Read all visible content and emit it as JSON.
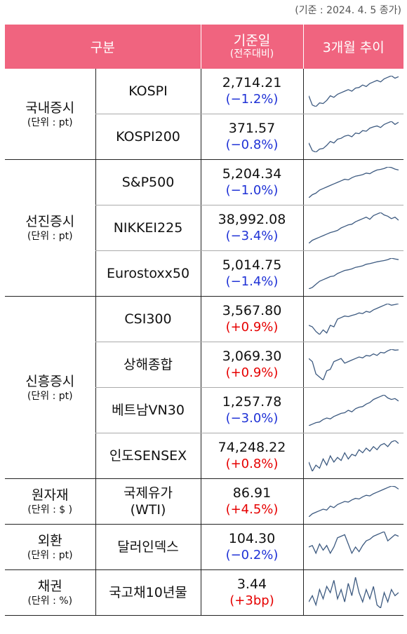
{
  "note": "(기준 : 2024. 4. 5 종가)",
  "header": {
    "col1": "구분",
    "col3_main": "기준일",
    "col3_sub": "(전주대비)",
    "col4": "3개월 추이"
  },
  "colors": {
    "header_bg": "#f0647f",
    "negative": "#1f32d6",
    "positive": "#e60000",
    "sparkline": "#3d5a80"
  },
  "groups": [
    {
      "name": "국내증시",
      "unit": "(단위 : pt)",
      "rows": [
        {
          "name": "KOSPI",
          "value": "2,714.21",
          "change": "(−1.2%)",
          "dir": "neg"
        },
        {
          "name": "KOSPI200",
          "value": "371.57",
          "change": "(−0.8%)",
          "dir": "neg"
        }
      ]
    },
    {
      "name": "선진증시",
      "unit": "(단위 : pt)",
      "rows": [
        {
          "name": "S&P500",
          "value": "5,204.34",
          "change": "(−1.0%)",
          "dir": "neg"
        },
        {
          "name": "NIKKEI225",
          "value": "38,992.08",
          "change": "(−3.4%)",
          "dir": "neg"
        },
        {
          "name": "Eurostoxx50",
          "value": "5,014.75",
          "change": "(−1.4%)",
          "dir": "neg"
        }
      ]
    },
    {
      "name": "신흥증시",
      "unit": "(단위 : pt)",
      "rows": [
        {
          "name": "CSI300",
          "value": "3,567.80",
          "change": "(+0.9%)",
          "dir": "pos"
        },
        {
          "name": "상해종합",
          "value": "3,069.30",
          "change": "(+0.9%)",
          "dir": "pos"
        },
        {
          "name": "베트남VN30",
          "value": "1,257.78",
          "change": "(−3.0%)",
          "dir": "neg"
        },
        {
          "name": "인도SENSEX",
          "value": "74,248.22",
          "change": "(+0.8%)",
          "dir": "pos"
        }
      ]
    },
    {
      "name": "원자재",
      "unit": "(단위 : $ )",
      "rows": [
        {
          "name": "국제유가\n(WTI)",
          "value": "86.91",
          "change": "(+4.5%)",
          "dir": "pos"
        }
      ]
    },
    {
      "name": "외환",
      "unit": "(단위 : pt)",
      "rows": [
        {
          "name": "달러인덱스",
          "value": "104.30",
          "change": "(−0.2%)",
          "dir": "neg"
        }
      ]
    },
    {
      "name": "채권",
      "unit": "(단위 : %)",
      "rows": [
        {
          "name": "국고채10년물",
          "value": "3.44",
          "change": "(+3bp)",
          "dir": "pos"
        }
      ]
    }
  ],
  "sparklines": [
    [
      0.35,
      0.05,
      0.0,
      0.12,
      0.1,
      0.2,
      0.35,
      0.3,
      0.4,
      0.45,
      0.5,
      0.55,
      0.5,
      0.6,
      0.62,
      0.7,
      0.65,
      0.75,
      0.8,
      0.85,
      0.8,
      0.9,
      0.95,
      1.0,
      0.92,
      0.97
    ],
    [
      0.3,
      0.05,
      0.0,
      0.1,
      0.12,
      0.22,
      0.35,
      0.3,
      0.42,
      0.45,
      0.52,
      0.55,
      0.5,
      0.62,
      0.6,
      0.7,
      0.68,
      0.78,
      0.82,
      0.85,
      0.8,
      0.9,
      0.95,
      1.0,
      0.9,
      0.97
    ],
    [
      0.0,
      0.1,
      0.15,
      0.25,
      0.3,
      0.35,
      0.4,
      0.45,
      0.5,
      0.55,
      0.6,
      0.58,
      0.65,
      0.7,
      0.72,
      0.75,
      0.8,
      0.78,
      0.85,
      0.9,
      0.92,
      0.95,
      1.0,
      0.98,
      0.93,
      0.9
    ],
    [
      0.0,
      0.1,
      0.15,
      0.2,
      0.25,
      0.3,
      0.35,
      0.38,
      0.42,
      0.5,
      0.55,
      0.6,
      0.62,
      0.7,
      0.75,
      0.8,
      0.85,
      0.78,
      0.9,
      0.95,
      1.0,
      0.92,
      0.88,
      0.8,
      0.85,
      0.75
    ],
    [
      0.0,
      0.05,
      0.15,
      0.25,
      0.3,
      0.35,
      0.4,
      0.42,
      0.5,
      0.55,
      0.6,
      0.62,
      0.65,
      0.7,
      0.72,
      0.75,
      0.8,
      0.82,
      0.85,
      0.88,
      0.9,
      0.92,
      0.95,
      1.0,
      0.97,
      0.95
    ],
    [
      0.3,
      0.25,
      0.1,
      0.0,
      0.15,
      0.05,
      0.3,
      0.25,
      0.5,
      0.55,
      0.6,
      0.58,
      0.62,
      0.65,
      0.7,
      0.68,
      0.75,
      0.72,
      0.8,
      0.85,
      0.9,
      0.95,
      1.0,
      0.95,
      0.97,
      1.0
    ],
    [
      0.7,
      0.6,
      0.2,
      0.1,
      0.0,
      0.3,
      0.35,
      0.6,
      0.65,
      0.7,
      0.55,
      0.6,
      0.65,
      0.7,
      0.75,
      0.72,
      0.8,
      0.78,
      0.85,
      0.8,
      0.9,
      0.88,
      0.95,
      1.0,
      0.97,
      0.98
    ],
    [
      0.0,
      0.05,
      0.1,
      0.12,
      0.2,
      0.25,
      0.22,
      0.3,
      0.35,
      0.4,
      0.42,
      0.5,
      0.45,
      0.55,
      0.6,
      0.62,
      0.7,
      0.75,
      0.85,
      0.9,
      0.95,
      1.0,
      0.9,
      0.85,
      0.88,
      0.8
    ],
    [
      0.3,
      0.0,
      0.2,
      0.1,
      0.4,
      0.2,
      0.5,
      0.3,
      0.45,
      0.35,
      0.6,
      0.4,
      0.55,
      0.5,
      0.7,
      0.6,
      0.75,
      0.65,
      0.8,
      0.7,
      0.85,
      0.9,
      0.8,
      0.95,
      1.0,
      0.9
    ],
    [
      0.0,
      0.1,
      0.15,
      0.2,
      0.25,
      0.22,
      0.35,
      0.3,
      0.4,
      0.45,
      0.5,
      0.48,
      0.55,
      0.6,
      0.58,
      0.65,
      0.7,
      0.68,
      0.75,
      0.8,
      0.85,
      0.9,
      0.95,
      1.0,
      0.98,
      0.9
    ],
    [
      0.5,
      0.55,
      0.3,
      0.6,
      0.4,
      0.55,
      0.3,
      0.5,
      0.8,
      0.85,
      0.9,
      0.6,
      0.3,
      0.5,
      0.35,
      0.55,
      0.7,
      0.75,
      0.85,
      0.9,
      0.95,
      1.0,
      0.7,
      0.8,
      0.9,
      0.85
    ],
    [
      0.2,
      0.4,
      0.1,
      0.6,
      0.3,
      0.7,
      0.5,
      0.9,
      0.3,
      0.6,
      0.2,
      0.8,
      0.4,
      1.0,
      0.5,
      0.2,
      0.6,
      0.3,
      0.7,
      0.1,
      0.0,
      0.5,
      0.2,
      0.6,
      0.4,
      0.5
    ]
  ]
}
